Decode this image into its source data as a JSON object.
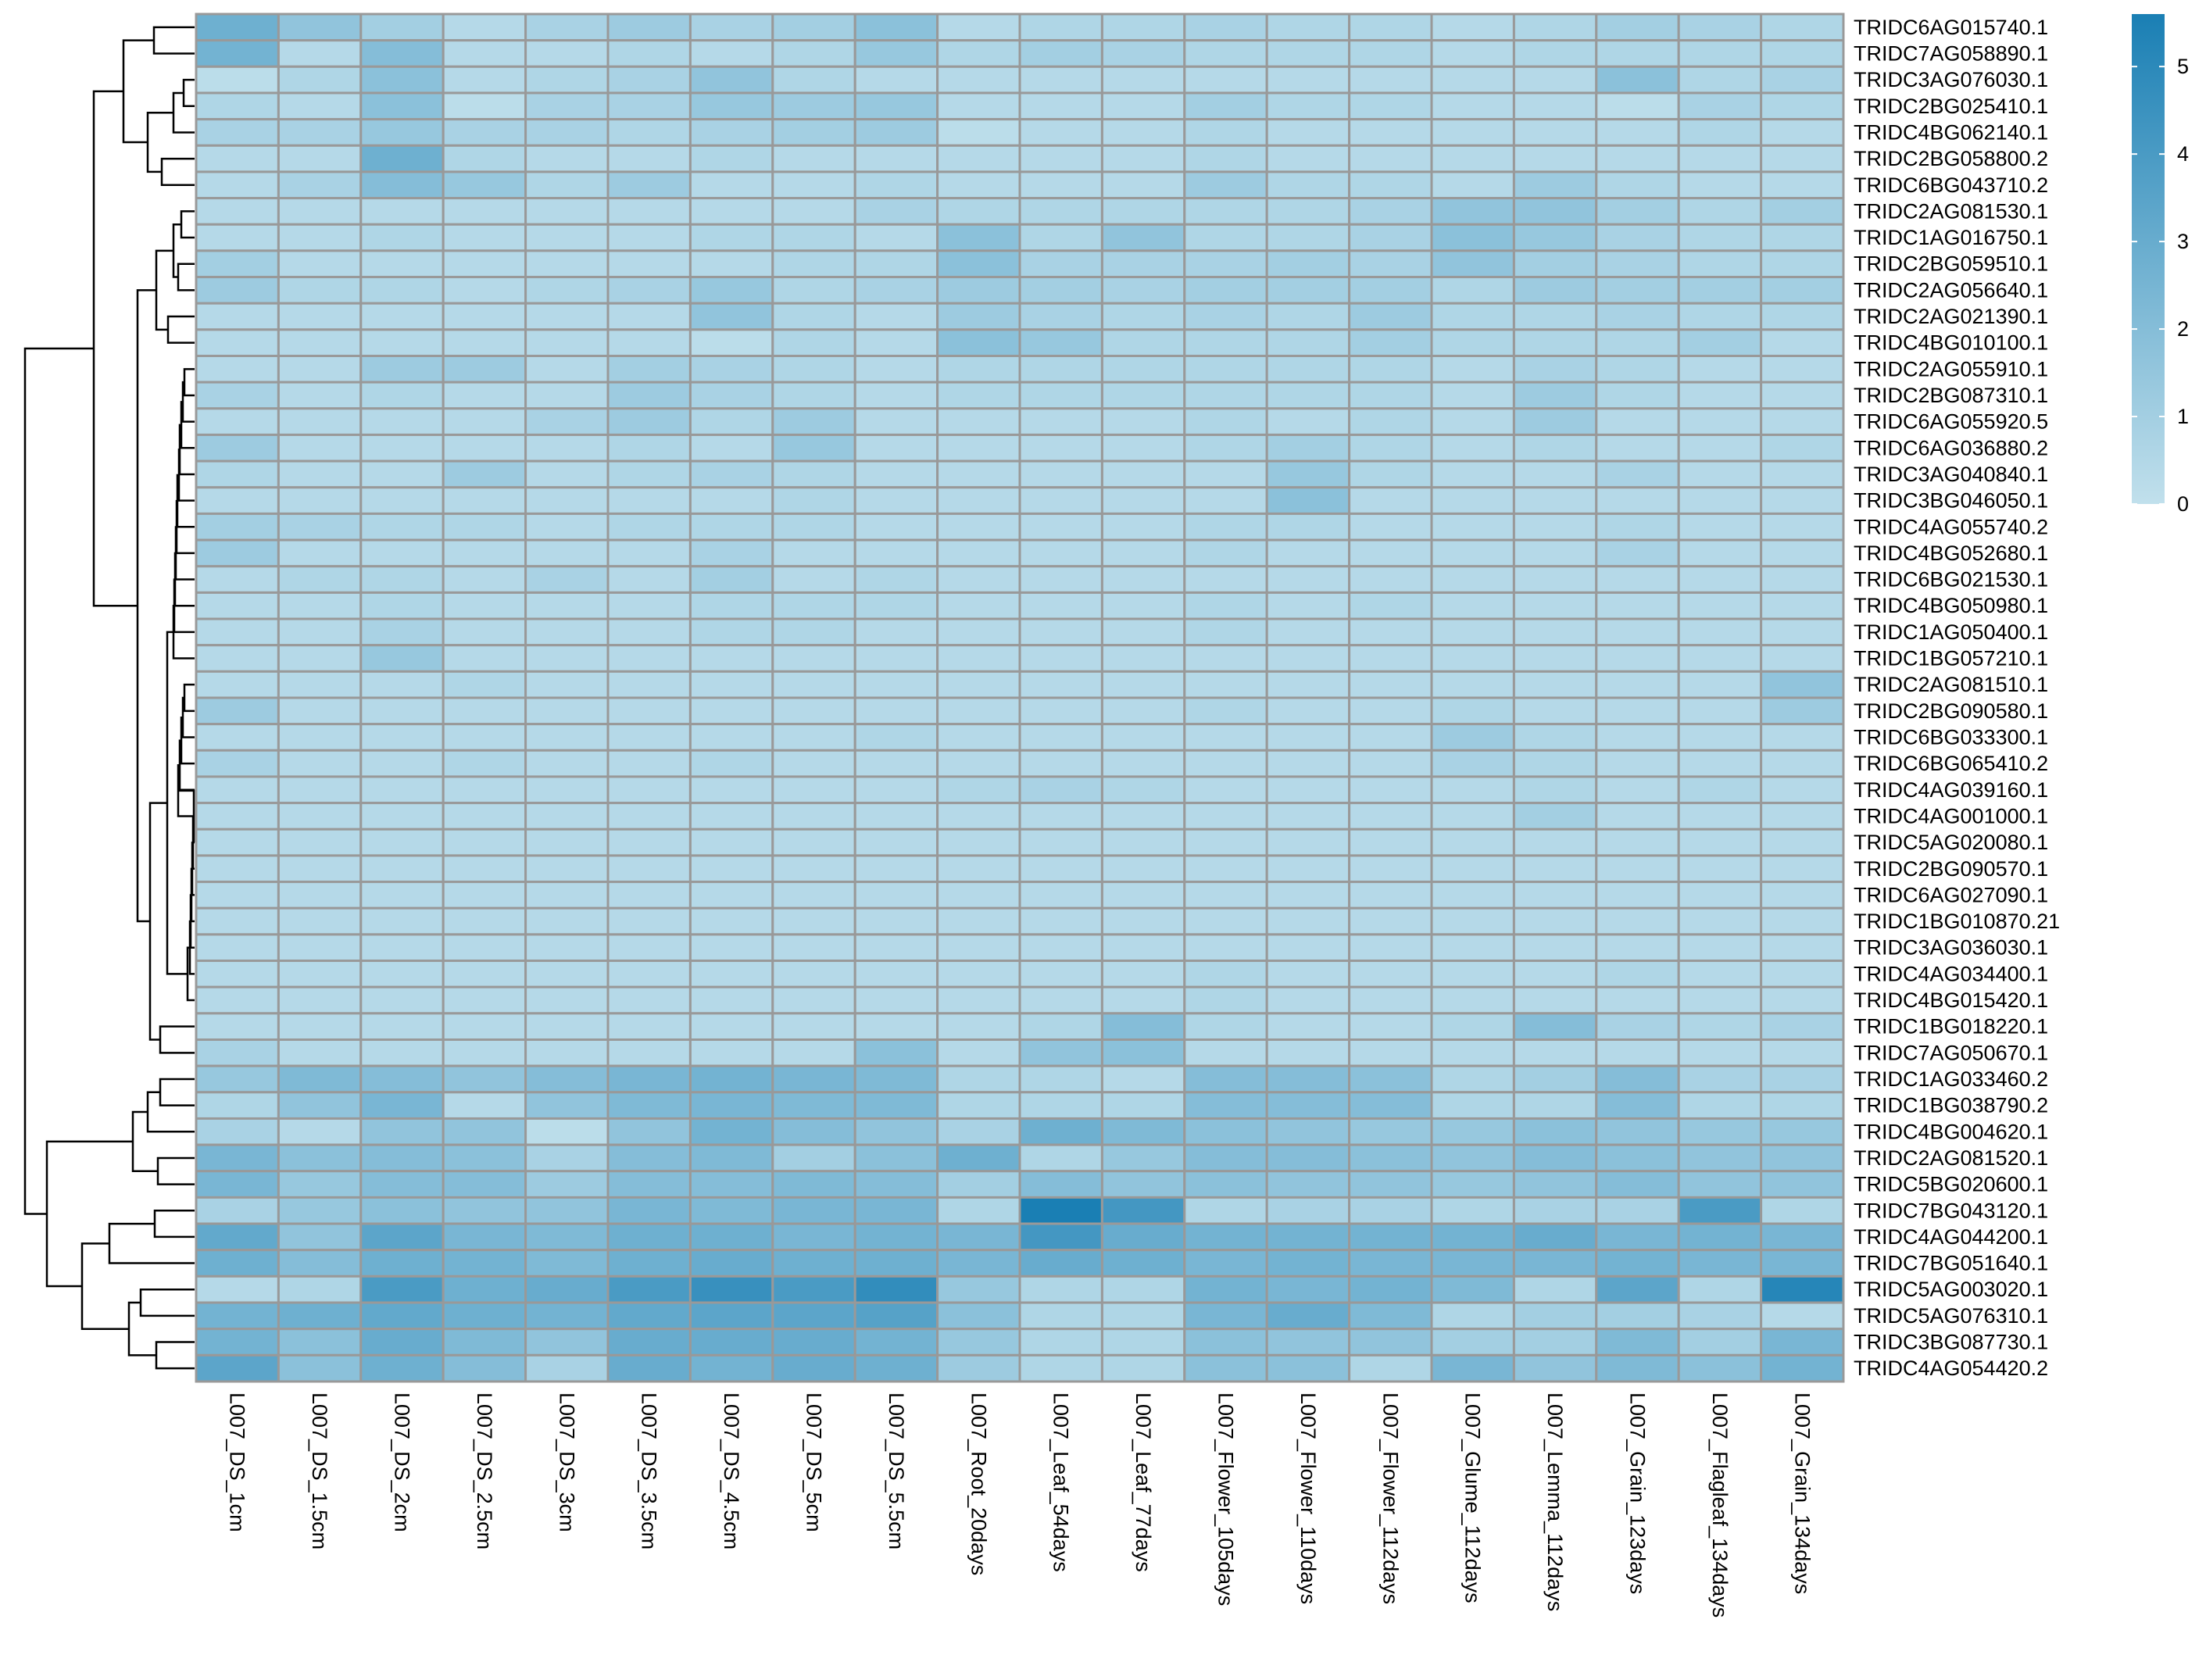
{
  "chart_data": {
    "type": "heatmap",
    "columns": [
      "L007_DS_1cm",
      "L007_DS_1.5cm",
      "L007_DS_2cm",
      "L007_DS_2.5cm",
      "L007_DS_3cm",
      "L007_DS_3.5cm",
      "L007_DS_4.5cm",
      "L007_DS_5cm",
      "L007_DS_5.5cm",
      "L007_Root_20days",
      "L007_Leaf_54days",
      "L007_Leaf_77days",
      "L007_Flower_105days",
      "L007_Flower_110days",
      "L007_Flower_112days",
      "L007_Glume_112days",
      "L007_Lemma_112days",
      "L007_Grain_123days",
      "L007_Flagleaf_134days",
      "L007_Grain_134days"
    ],
    "rows": [
      "TRIDC6AG015740.1",
      "TRIDC7AG058890.1",
      "TRIDC3AG076030.1",
      "TRIDC2BG025410.1",
      "TRIDC4BG062140.1",
      "TRIDC2BG058800.2",
      "TRIDC6BG043710.2",
      "TRIDC2AG081530.1",
      "TRIDC1AG016750.1",
      "TRIDC2BG059510.1",
      "TRIDC2AG056640.1",
      "TRIDC2AG021390.1",
      "TRIDC4BG010100.1",
      "TRIDC2AG055910.1",
      "TRIDC2BG087310.1",
      "TRIDC6AG055920.5",
      "TRIDC6AG036880.2",
      "TRIDC3AG040840.1",
      "TRIDC3BG046050.1",
      "TRIDC4AG055740.2",
      "TRIDC4BG052680.1",
      "TRIDC6BG021530.1",
      "TRIDC4BG050980.1",
      "TRIDC1AG050400.1",
      "TRIDC1BG057210.1",
      "TRIDC2AG081510.1",
      "TRIDC2BG090580.1",
      "TRIDC6BG033300.1",
      "TRIDC6BG065410.2",
      "TRIDC4AG039160.1",
      "TRIDC4AG001000.1",
      "TRIDC5AG020080.1",
      "TRIDC2BG090570.1",
      "TRIDC6AG027090.1",
      "TRIDC1BG010870.21",
      "TRIDC3AG036030.1",
      "TRIDC4AG034400.1",
      "TRIDC4BG015420.1",
      "TRIDC1BG018220.1",
      "TRIDC7AG050670.1",
      "TRIDC1AG033460.2",
      "TRIDC1BG038790.2",
      "TRIDC4BG004620.1",
      "TRIDC2AG081520.1",
      "TRIDC5BG020600.1",
      "TRIDC7BG043120.1",
      "TRIDC4AG044200.1",
      "TRIDC7BG051640.1",
      "TRIDC5AG003020.1",
      "TRIDC5AG076310.1",
      "TRIDC3BG087730.1",
      "TRIDC4AG054420.2"
    ],
    "values": [
      [
        2.8,
        1.6,
        1.0,
        0.4,
        0.8,
        1.2,
        0.8,
        1.0,
        1.8,
        0.4,
        0.6,
        0.6,
        0.8,
        0.6,
        0.6,
        0.4,
        0.6,
        1.0,
        0.8,
        0.6
      ],
      [
        2.6,
        0.4,
        2.0,
        0.4,
        0.4,
        0.6,
        0.4,
        0.6,
        1.4,
        0.6,
        1.0,
        0.8,
        0.6,
        0.6,
        0.6,
        0.4,
        0.6,
        0.6,
        0.6,
        0.6
      ],
      [
        0.2,
        0.6,
        1.8,
        0.4,
        0.6,
        0.8,
        1.6,
        0.6,
        0.4,
        0.4,
        0.4,
        0.4,
        0.4,
        0.4,
        0.4,
        0.4,
        0.4,
        1.8,
        0.6,
        0.8
      ],
      [
        0.6,
        0.4,
        1.8,
        0.2,
        0.8,
        0.8,
        1.4,
        1.2,
        1.4,
        0.4,
        0.4,
        0.4,
        1.0,
        0.6,
        0.6,
        0.4,
        0.4,
        0.2,
        0.8,
        0.6
      ],
      [
        0.8,
        0.8,
        1.4,
        0.8,
        0.8,
        0.6,
        0.8,
        1.0,
        1.2,
        0.2,
        0.4,
        0.4,
        0.6,
        0.4,
        0.4,
        0.4,
        0.4,
        0.4,
        0.6,
        0.4
      ],
      [
        0.4,
        0.4,
        2.8,
        0.6,
        0.4,
        0.4,
        0.6,
        0.4,
        0.4,
        0.4,
        0.4,
        0.4,
        0.6,
        0.4,
        0.4,
        0.4,
        0.4,
        0.4,
        0.4,
        0.4
      ],
      [
        0.4,
        0.8,
        2.0,
        1.4,
        0.6,
        1.2,
        0.4,
        0.4,
        0.6,
        0.4,
        0.4,
        0.4,
        1.2,
        0.6,
        0.6,
        0.4,
        1.2,
        0.6,
        0.4,
        0.4
      ],
      [
        0.4,
        0.4,
        0.4,
        0.4,
        0.4,
        0.4,
        0.4,
        0.4,
        0.8,
        0.6,
        0.6,
        0.6,
        0.6,
        0.6,
        0.8,
        1.6,
        1.6,
        1.0,
        0.6,
        1.0
      ],
      [
        0.4,
        0.4,
        0.6,
        0.4,
        0.4,
        0.4,
        0.6,
        0.6,
        0.4,
        1.8,
        0.6,
        1.6,
        0.6,
        0.6,
        0.8,
        1.8,
        1.4,
        0.8,
        0.6,
        0.6
      ],
      [
        1.0,
        0.4,
        0.4,
        0.4,
        0.4,
        0.4,
        0.4,
        0.6,
        0.6,
        1.8,
        0.8,
        0.8,
        0.8,
        1.0,
        0.8,
        1.6,
        1.0,
        0.8,
        0.6,
        0.6
      ],
      [
        1.2,
        0.6,
        0.6,
        0.4,
        0.6,
        0.8,
        1.4,
        0.6,
        0.8,
        1.2,
        1.0,
        0.8,
        1.0,
        1.0,
        1.0,
        0.6,
        1.2,
        1.0,
        1.0,
        1.0
      ],
      [
        0.4,
        0.4,
        0.4,
        0.4,
        0.4,
        0.4,
        1.6,
        0.6,
        0.4,
        1.2,
        0.8,
        0.6,
        0.8,
        0.6,
        1.2,
        0.6,
        0.6,
        0.8,
        0.6,
        0.6
      ],
      [
        0.4,
        0.4,
        0.4,
        0.4,
        0.4,
        0.4,
        0.2,
        0.6,
        0.4,
        1.8,
        1.4,
        0.6,
        0.6,
        0.6,
        1.0,
        0.6,
        0.6,
        0.6,
        1.0,
        0.4
      ],
      [
        0.4,
        0.4,
        1.2,
        1.2,
        0.4,
        1.0,
        0.8,
        0.6,
        0.4,
        0.6,
        0.6,
        0.6,
        0.6,
        0.6,
        0.6,
        0.4,
        0.8,
        0.6,
        0.4,
        0.4
      ],
      [
        0.8,
        0.4,
        0.6,
        0.4,
        0.4,
        1.2,
        0.8,
        0.6,
        0.4,
        0.6,
        0.6,
        0.6,
        0.6,
        0.6,
        0.6,
        0.4,
        1.2,
        0.6,
        0.4,
        0.4
      ],
      [
        0.4,
        0.4,
        0.4,
        0.4,
        0.8,
        1.2,
        0.6,
        1.2,
        0.4,
        0.4,
        0.4,
        0.4,
        0.6,
        0.4,
        0.6,
        0.4,
        1.2,
        0.4,
        0.4,
        0.4
      ],
      [
        1.2,
        0.4,
        0.4,
        0.4,
        0.4,
        0.6,
        0.4,
        1.4,
        0.4,
        0.4,
        0.4,
        0.4,
        0.6,
        1.0,
        0.6,
        0.4,
        0.6,
        0.4,
        0.4,
        0.6
      ],
      [
        0.6,
        0.4,
        0.4,
        1.2,
        0.4,
        0.6,
        0.8,
        0.6,
        0.4,
        0.4,
        0.4,
        0.4,
        0.4,
        1.4,
        0.6,
        0.4,
        0.4,
        0.8,
        0.4,
        0.4
      ],
      [
        0.4,
        0.4,
        0.4,
        0.4,
        0.4,
        0.4,
        0.4,
        0.6,
        0.4,
        0.4,
        0.4,
        0.4,
        0.4,
        1.8,
        0.4,
        0.4,
        0.4,
        0.4,
        0.4,
        0.4
      ],
      [
        1.0,
        0.8,
        0.6,
        0.6,
        0.4,
        0.6,
        0.6,
        0.6,
        0.4,
        0.4,
        0.4,
        0.4,
        0.6,
        0.6,
        0.4,
        0.4,
        0.4,
        0.6,
        0.4,
        0.4
      ],
      [
        1.2,
        0.4,
        0.4,
        0.4,
        0.4,
        0.4,
        0.8,
        0.4,
        0.4,
        0.4,
        0.4,
        0.4,
        0.6,
        0.4,
        0.4,
        0.4,
        0.4,
        0.8,
        0.4,
        0.4
      ],
      [
        0.4,
        0.6,
        0.6,
        0.4,
        0.8,
        0.4,
        1.0,
        0.4,
        0.6,
        0.4,
        0.4,
        0.4,
        0.4,
        0.4,
        0.4,
        0.4,
        0.4,
        0.4,
        0.4,
        0.4
      ],
      [
        0.4,
        0.4,
        0.6,
        0.4,
        0.4,
        0.4,
        0.6,
        0.6,
        0.6,
        0.4,
        0.4,
        0.4,
        0.6,
        0.4,
        0.6,
        0.4,
        0.4,
        0.4,
        0.4,
        0.4
      ],
      [
        0.4,
        0.4,
        0.8,
        0.4,
        0.4,
        0.4,
        0.6,
        0.6,
        0.4,
        0.4,
        0.4,
        0.4,
        0.6,
        0.4,
        0.4,
        0.4,
        0.4,
        0.4,
        0.4,
        0.4
      ],
      [
        0.4,
        0.4,
        1.4,
        0.4,
        0.4,
        0.4,
        0.4,
        0.4,
        0.4,
        0.4,
        0.4,
        0.4,
        0.4,
        0.4,
        0.4,
        0.4,
        0.4,
        0.4,
        0.4,
        0.4
      ],
      [
        0.4,
        0.4,
        0.4,
        0.6,
        0.4,
        0.4,
        0.4,
        0.4,
        0.4,
        0.4,
        0.4,
        0.4,
        0.4,
        0.4,
        0.4,
        0.4,
        0.4,
        0.4,
        0.4,
        1.6
      ],
      [
        1.2,
        0.4,
        0.4,
        0.4,
        0.4,
        0.4,
        0.4,
        0.4,
        0.4,
        0.4,
        0.4,
        0.4,
        0.6,
        0.4,
        0.4,
        0.6,
        0.4,
        0.4,
        0.4,
        1.2
      ],
      [
        0.4,
        0.4,
        0.4,
        0.4,
        0.4,
        0.4,
        0.4,
        0.4,
        0.6,
        0.4,
        0.4,
        0.4,
        0.4,
        0.4,
        0.4,
        1.2,
        0.6,
        0.4,
        0.4,
        0.4
      ],
      [
        0.8,
        0.4,
        0.4,
        0.6,
        0.4,
        0.4,
        0.6,
        0.4,
        0.4,
        0.4,
        0.4,
        0.4,
        0.4,
        0.4,
        0.4,
        0.8,
        0.6,
        0.4,
        0.4,
        0.4
      ],
      [
        0.4,
        0.4,
        0.4,
        0.4,
        0.4,
        0.4,
        0.4,
        0.4,
        0.4,
        0.6,
        0.8,
        0.6,
        0.4,
        0.4,
        0.4,
        0.4,
        0.6,
        0.4,
        0.6,
        0.4
      ],
      [
        0.4,
        0.4,
        0.4,
        0.4,
        0.4,
        0.4,
        0.4,
        0.4,
        0.4,
        0.4,
        0.4,
        0.4,
        0.4,
        0.4,
        0.4,
        0.4,
        1.0,
        0.4,
        0.4,
        0.4
      ],
      [
        0.4,
        0.4,
        0.4,
        0.4,
        0.4,
        0.4,
        0.4,
        0.4,
        0.4,
        0.4,
        0.4,
        0.4,
        0.4,
        0.4,
        0.4,
        0.4,
        0.4,
        0.4,
        0.4,
        0.4
      ],
      [
        0.4,
        0.4,
        0.4,
        0.4,
        0.4,
        0.4,
        0.4,
        0.4,
        0.4,
        0.4,
        0.4,
        0.4,
        0.4,
        0.4,
        0.4,
        0.4,
        0.4,
        0.4,
        0.4,
        0.4
      ],
      [
        0.4,
        0.4,
        0.4,
        0.4,
        0.4,
        0.4,
        0.4,
        0.4,
        0.4,
        0.4,
        0.4,
        0.4,
        0.4,
        0.4,
        0.4,
        0.4,
        0.4,
        0.4,
        0.4,
        0.4
      ],
      [
        0.4,
        0.4,
        0.4,
        0.4,
        0.4,
        0.4,
        0.4,
        0.4,
        0.4,
        0.4,
        0.4,
        0.4,
        0.4,
        0.4,
        0.4,
        0.4,
        0.4,
        0.4,
        0.4,
        0.4
      ],
      [
        0.4,
        0.4,
        0.4,
        0.4,
        0.4,
        0.4,
        0.4,
        0.4,
        0.4,
        0.4,
        0.4,
        0.4,
        0.4,
        0.4,
        0.4,
        0.4,
        0.4,
        0.4,
        0.4,
        0.4
      ],
      [
        0.4,
        0.4,
        0.4,
        0.4,
        0.4,
        0.4,
        0.4,
        0.4,
        0.4,
        0.4,
        0.4,
        0.4,
        0.6,
        0.4,
        0.4,
        0.4,
        0.4,
        0.6,
        0.4,
        0.4
      ],
      [
        0.4,
        0.4,
        0.4,
        0.4,
        0.4,
        0.4,
        0.4,
        0.4,
        0.4,
        0.4,
        0.4,
        0.4,
        0.6,
        0.4,
        0.4,
        0.4,
        0.4,
        0.4,
        0.4,
        0.4
      ],
      [
        0.4,
        0.4,
        0.4,
        0.4,
        0.4,
        0.4,
        0.4,
        0.4,
        0.4,
        0.4,
        0.6,
        2.0,
        0.6,
        0.4,
        0.4,
        0.6,
        2.0,
        0.8,
        0.6,
        0.8
      ],
      [
        0.8,
        0.4,
        0.4,
        0.4,
        0.4,
        0.4,
        0.4,
        0.4,
        1.8,
        0.4,
        1.6,
        1.8,
        0.4,
        0.4,
        0.4,
        0.4,
        0.4,
        0.4,
        0.4,
        0.4
      ],
      [
        1.4,
        2.2,
        2.0,
        1.6,
        2.0,
        2.4,
        2.6,
        2.4,
        2.2,
        0.6,
        0.6,
        0.4,
        2.0,
        2.0,
        1.8,
        0.6,
        1.0,
        2.0,
        0.8,
        0.8
      ],
      [
        0.6,
        1.6,
        2.4,
        0.4,
        1.6,
        2.2,
        2.4,
        2.2,
        2.2,
        0.6,
        0.6,
        0.6,
        2.0,
        2.0,
        2.0,
        0.6,
        0.6,
        2.0,
        0.6,
        0.6
      ],
      [
        0.8,
        0.4,
        1.6,
        1.6,
        0.2,
        1.6,
        2.6,
        2.0,
        1.6,
        0.8,
        2.8,
        2.2,
        1.8,
        1.6,
        1.4,
        1.4,
        1.8,
        1.6,
        1.4,
        1.4
      ],
      [
        2.4,
        1.8,
        2.0,
        1.8,
        0.8,
        2.0,
        2.2,
        1.0,
        1.8,
        2.8,
        0.6,
        1.4,
        2.0,
        2.0,
        1.8,
        1.6,
        2.0,
        1.8,
        1.6,
        1.6
      ],
      [
        2.4,
        1.4,
        2.0,
        2.0,
        1.2,
        2.0,
        2.0,
        2.2,
        2.0,
        1.0,
        2.0,
        1.6,
        1.8,
        1.6,
        1.6,
        1.4,
        1.6,
        2.0,
        1.6,
        1.6
      ],
      [
        0.8,
        1.4,
        1.8,
        1.6,
        1.6,
        2.4,
        2.2,
        2.4,
        2.4,
        0.6,
        5.6,
        4.2,
        0.6,
        0.8,
        0.8,
        0.6,
        0.8,
        0.8,
        4.0,
        0.6
      ],
      [
        3.2,
        1.6,
        3.4,
        2.4,
        2.2,
        2.8,
        2.8,
        2.4,
        2.6,
        2.4,
        4.2,
        3.0,
        2.6,
        2.6,
        2.6,
        2.6,
        3.0,
        2.4,
        2.6,
        2.4
      ],
      [
        2.8,
        2.0,
        2.8,
        2.6,
        2.2,
        2.8,
        3.0,
        2.8,
        2.8,
        2.4,
        3.0,
        2.8,
        2.4,
        2.6,
        2.4,
        2.4,
        2.4,
        2.6,
        2.4,
        2.4
      ],
      [
        0.4,
        0.6,
        4.0,
        2.8,
        3.0,
        4.0,
        4.6,
        4.0,
        4.8,
        1.4,
        0.6,
        0.6,
        2.6,
        2.4,
        2.6,
        2.2,
        0.6,
        3.4,
        0.6,
        5.2
      ],
      [
        2.6,
        2.8,
        3.2,
        2.8,
        2.6,
        3.2,
        3.4,
        3.4,
        3.6,
        1.8,
        0.6,
        0.6,
        2.4,
        3.0,
        2.2,
        0.6,
        1.0,
        1.0,
        0.8,
        0.4
      ],
      [
        2.6,
        1.8,
        3.0,
        2.2,
        1.6,
        3.0,
        3.0,
        3.0,
        2.6,
        1.4,
        0.6,
        0.6,
        1.8,
        1.6,
        1.6,
        1.0,
        1.0,
        2.2,
        1.0,
        2.4
      ],
      [
        3.4,
        1.8,
        2.8,
        2.0,
        0.8,
        3.0,
        2.6,
        3.0,
        2.8,
        1.2,
        0.6,
        0.6,
        1.8,
        1.8,
        0.6,
        2.4,
        1.6,
        2.2,
        1.8,
        2.6
      ]
    ],
    "scale_min": 0,
    "scale_max": 5.6,
    "colorbar_ticks": [
      0,
      1,
      2,
      3,
      4,
      5
    ],
    "color_low": "#c1e0ec",
    "color_high": "#1a7fb4",
    "cell_border": "#999999",
    "row_dendrogram": true
  }
}
